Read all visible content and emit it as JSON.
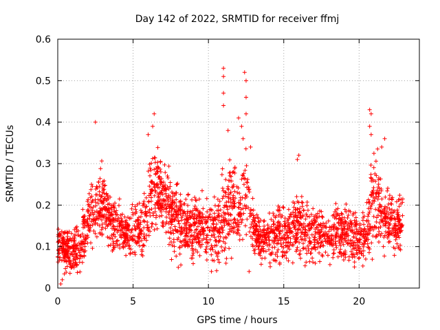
{
  "chart_data": {
    "type": "scatter",
    "title": "Day 142 of 2022, SRMTID for receiver ffmj",
    "xlabel": "GPS time / hours",
    "ylabel": "SRMTID / TECUs",
    "xlim": [
      0,
      24
    ],
    "ylim": [
      0,
      0.6
    ],
    "xticks": [
      0,
      5,
      10,
      15,
      20
    ],
    "xtick_labels": [
      "0",
      "5",
      "10",
      "15",
      "20"
    ],
    "yticks": [
      0,
      0.1,
      0.2,
      0.3,
      0.4,
      0.5,
      0.6
    ],
    "ytick_labels": [
      "0",
      "0.1",
      "0.2",
      "0.3",
      "0.4",
      "0.5",
      "0.6"
    ],
    "grid": true,
    "marker": "+",
    "color": "#ff0000",
    "series": [
      {
        "name": "SRMTID",
        "envelope": {
          "x": [
            0,
            0.5,
            1,
            1.5,
            2,
            2.5,
            3,
            3.5,
            4,
            4.5,
            5,
            5.5,
            6,
            6.5,
            7,
            7.5,
            8,
            8.5,
            9,
            9.5,
            10,
            10.5,
            11,
            11.5,
            12,
            12.5,
            13,
            13.5,
            14,
            14.5,
            15,
            15.5,
            16,
            16.5,
            17,
            17.5,
            18,
            18.5,
            19,
            19.5,
            20,
            20.5,
            21,
            21.5,
            22,
            22.5,
            22.9
          ],
          "median": [
            0.1,
            0.09,
            0.08,
            0.1,
            0.16,
            0.2,
            0.2,
            0.16,
            0.15,
            0.13,
            0.14,
            0.14,
            0.19,
            0.25,
            0.22,
            0.19,
            0.17,
            0.15,
            0.15,
            0.15,
            0.14,
            0.13,
            0.17,
            0.2,
            0.18,
            0.22,
            0.14,
            0.12,
            0.12,
            0.13,
            0.13,
            0.14,
            0.15,
            0.14,
            0.13,
            0.13,
            0.12,
            0.13,
            0.13,
            0.13,
            0.11,
            0.14,
            0.22,
            0.19,
            0.16,
            0.15,
            0.17
          ],
          "spread": [
            0.03,
            0.03,
            0.03,
            0.04,
            0.04,
            0.05,
            0.05,
            0.04,
            0.04,
            0.03,
            0.04,
            0.04,
            0.05,
            0.06,
            0.05,
            0.05,
            0.05,
            0.04,
            0.05,
            0.04,
            0.04,
            0.04,
            0.07,
            0.06,
            0.06,
            0.08,
            0.03,
            0.03,
            0.03,
            0.04,
            0.04,
            0.04,
            0.05,
            0.04,
            0.04,
            0.04,
            0.03,
            0.04,
            0.04,
            0.04,
            0.03,
            0.05,
            0.08,
            0.05,
            0.04,
            0.04,
            0.04
          ]
        },
        "n_points": 2600,
        "peaks": [
          {
            "x": 2.5,
            "y": 0.4
          },
          {
            "x": 6.4,
            "y": 0.42
          },
          {
            "x": 6.3,
            "y": 0.39
          },
          {
            "x": 6.0,
            "y": 0.37
          },
          {
            "x": 11.0,
            "y": 0.53
          },
          {
            "x": 11.0,
            "y": 0.51
          },
          {
            "x": 11.0,
            "y": 0.47
          },
          {
            "x": 11.0,
            "y": 0.44
          },
          {
            "x": 11.3,
            "y": 0.38
          },
          {
            "x": 12.0,
            "y": 0.41
          },
          {
            "x": 12.2,
            "y": 0.39
          },
          {
            "x": 12.3,
            "y": 0.36
          },
          {
            "x": 12.4,
            "y": 0.52
          },
          {
            "x": 12.5,
            "y": 0.5
          },
          {
            "x": 12.5,
            "y": 0.46
          },
          {
            "x": 12.5,
            "y": 0.42
          },
          {
            "x": 12.8,
            "y": 0.34
          },
          {
            "x": 12.7,
            "y": 0.04
          },
          {
            "x": 16.0,
            "y": 0.32
          },
          {
            "x": 15.9,
            "y": 0.31
          },
          {
            "x": 20.7,
            "y": 0.43
          },
          {
            "x": 20.8,
            "y": 0.42
          },
          {
            "x": 20.7,
            "y": 0.39
          },
          {
            "x": 20.8,
            "y": 0.37
          },
          {
            "x": 21.5,
            "y": 0.34
          },
          {
            "x": 21.7,
            "y": 0.36
          },
          {
            "x": 0.2,
            "y": 0.01
          },
          {
            "x": 0.3,
            "y": 0.02
          },
          {
            "x": 10.2,
            "y": 0.04
          },
          {
            "x": 8.0,
            "y": 0.05
          }
        ]
      }
    ]
  }
}
